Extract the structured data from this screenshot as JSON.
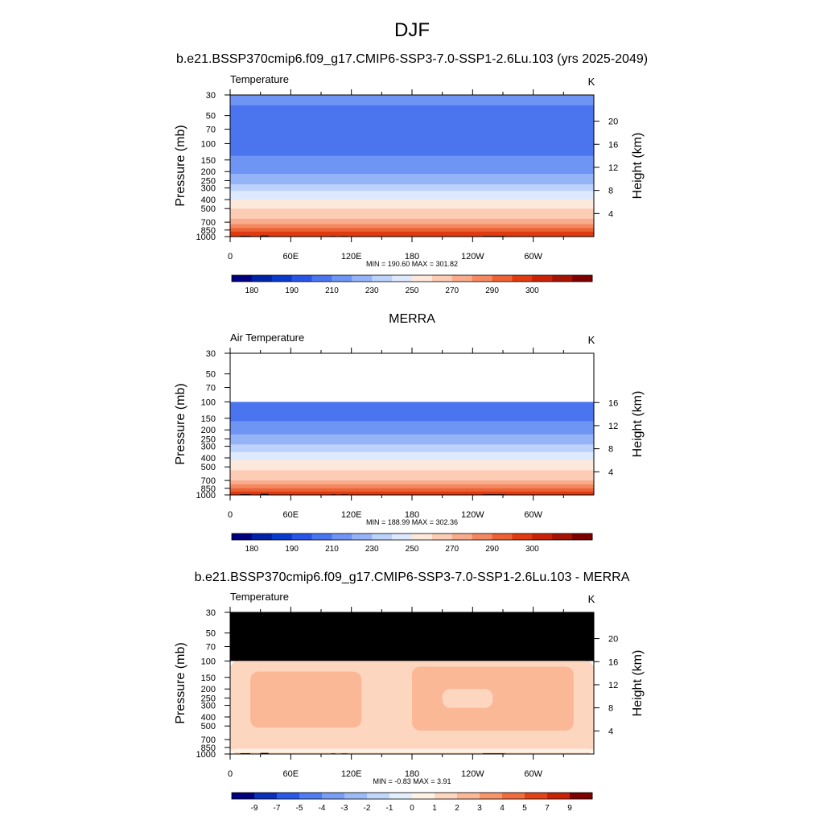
{
  "figure": {
    "title": "DJF",
    "subtitle": "b.e21.BSSP370cmip6.f09_g17.CMIP6-SSP3-7.0-SSP1-2.6Lu.103 (yrs 2025-2049)"
  },
  "colors": {
    "temp_scale": [
      "#00007f",
      "#0022a5",
      "#0a3acb",
      "#2855e5",
      "#4a75ef",
      "#6f95f4",
      "#95b3f7",
      "#bcd1fb",
      "#dde9fd",
      "#fde9dc",
      "#fcccb4",
      "#f9ac8c",
      "#f48860",
      "#ec6234",
      "#df3a10",
      "#c82306",
      "#a51302",
      "#7f0000"
    ],
    "diff_scale": [
      "#00007f",
      "#0a2fb8",
      "#2a59e8",
      "#4f7cf0",
      "#779df4",
      "#9dbaf8",
      "#c1d6fb",
      "#e3eefd",
      "#fef1e6",
      "#fdd6bf",
      "#fbb896",
      "#f7966b",
      "#f06d3f",
      "#e24217",
      "#c82306",
      "#7f0000"
    ]
  },
  "chart_data": [
    {
      "type": "heatmap",
      "panel_title": "",
      "left_label": "Temperature",
      "right_label": "K",
      "ylabel": "Pressure (mb)",
      "ylabel_right": "Height (km)",
      "x_ticks": [
        "0",
        "60E",
        "120E",
        "180",
        "120W",
        "60W"
      ],
      "x_tick_values": [
        0,
        60,
        120,
        180,
        240,
        300
      ],
      "xlim": [
        0,
        360
      ],
      "y_ticks": [
        "30",
        "50",
        "70",
        "100",
        "150",
        "200",
        "250",
        "300",
        "400",
        "500",
        "700",
        "850",
        "1000"
      ],
      "y_tick_values": [
        30,
        50,
        70,
        100,
        150,
        200,
        250,
        300,
        400,
        500,
        700,
        850,
        1000
      ],
      "ylim": [
        1000,
        30
      ],
      "right_ticks": [
        "20",
        "16",
        "12",
        "8",
        "4"
      ],
      "right_tick_values": [
        20,
        16,
        12,
        8,
        4
      ],
      "data_top_pressure": 30,
      "stats": "MIN = 190.60  MAX = 301.82",
      "min": 190.6,
      "max": 301.82,
      "colorbar_labels": [
        "180",
        "190",
        "210",
        "230",
        "250",
        "270",
        "290",
        "300"
      ],
      "colorbar_levels": [
        180,
        185,
        190,
        200,
        210,
        220,
        230,
        240,
        250,
        260,
        270,
        275,
        280,
        285,
        290,
        295,
        300
      ],
      "colorbar_kind": "temp",
      "profile": [
        {
          "p": 30,
          "v": 214
        },
        {
          "p": 50,
          "v": 207
        },
        {
          "p": 70,
          "v": 203
        },
        {
          "p": 100,
          "v": 204
        },
        {
          "p": 150,
          "v": 211
        },
        {
          "p": 200,
          "v": 218
        },
        {
          "p": 250,
          "v": 226
        },
        {
          "p": 300,
          "v": 235
        },
        {
          "p": 400,
          "v": 249
        },
        {
          "p": 500,
          "v": 259
        },
        {
          "p": 700,
          "v": 273
        },
        {
          "p": 850,
          "v": 282
        },
        {
          "p": 1000,
          "v": 291
        }
      ]
    },
    {
      "type": "heatmap",
      "panel_title": "MERRA",
      "left_label": "Air Temperature",
      "right_label": "K",
      "ylabel": "Pressure (mb)",
      "ylabel_right": "Height (km)",
      "x_ticks": [
        "0",
        "60E",
        "120E",
        "180",
        "120W",
        "60W"
      ],
      "x_tick_values": [
        0,
        60,
        120,
        180,
        240,
        300
      ],
      "xlim": [
        0,
        360
      ],
      "y_ticks": [
        "30",
        "50",
        "70",
        "100",
        "150",
        "200",
        "250",
        "300",
        "400",
        "500",
        "700",
        "850",
        "1000"
      ],
      "y_tick_values": [
        30,
        50,
        70,
        100,
        150,
        200,
        250,
        300,
        400,
        500,
        700,
        850,
        1000
      ],
      "ylim": [
        1000,
        30
      ],
      "right_ticks": [
        "16",
        "12",
        "8",
        "4"
      ],
      "right_tick_values": [
        16,
        12,
        8,
        4
      ],
      "data_top_pressure": 100,
      "stats": "MIN = 188.99  MAX = 302.36",
      "min": 188.99,
      "max": 302.36,
      "colorbar_labels": [
        "180",
        "190",
        "210",
        "230",
        "250",
        "270",
        "290",
        "300"
      ],
      "colorbar_levels": [
        180,
        185,
        190,
        200,
        210,
        220,
        230,
        240,
        250,
        260,
        270,
        275,
        280,
        285,
        290,
        295,
        300
      ],
      "colorbar_kind": "temp",
      "profile": [
        {
          "p": 100,
          "v": 201
        },
        {
          "p": 150,
          "v": 209
        },
        {
          "p": 200,
          "v": 216
        },
        {
          "p": 250,
          "v": 224
        },
        {
          "p": 300,
          "v": 233
        },
        {
          "p": 400,
          "v": 247
        },
        {
          "p": 500,
          "v": 257
        },
        {
          "p": 700,
          "v": 271
        },
        {
          "p": 850,
          "v": 280
        },
        {
          "p": 1000,
          "v": 290
        }
      ]
    },
    {
      "type": "heatmap",
      "panel_title": "b.e21.BSSP370cmip6.f09_g17.CMIP6-SSP3-7.0-SSP1-2.6Lu.103 - MERRA",
      "left_label": "Temperature",
      "right_label": "K",
      "ylabel": "Pressure (mb)",
      "ylabel_right": "Height (km)",
      "x_ticks": [
        "0",
        "60E",
        "120E",
        "180",
        "120W",
        "60W"
      ],
      "x_tick_values": [
        0,
        60,
        120,
        180,
        240,
        300
      ],
      "xlim": [
        0,
        360
      ],
      "y_ticks": [
        "30",
        "50",
        "70",
        "100",
        "150",
        "200",
        "250",
        "300",
        "400",
        "500",
        "700",
        "850",
        "1000"
      ],
      "y_tick_values": [
        30,
        50,
        70,
        100,
        150,
        200,
        250,
        300,
        400,
        500,
        700,
        850,
        1000
      ],
      "ylim": [
        1000,
        30
      ],
      "right_ticks": [
        "20",
        "16",
        "12",
        "8",
        "4"
      ],
      "right_tick_values": [
        20,
        16,
        12,
        8,
        4
      ],
      "missing_above_pressure": 100,
      "stats": "MIN =  -0.83  MAX =   3.91",
      "min": -0.83,
      "max": 3.91,
      "colorbar_labels": [
        "-9",
        "-7",
        "-5",
        "-4",
        "-3",
        "-2",
        "-1",
        "0",
        "1",
        "2",
        "3",
        "4",
        "5",
        "7",
        "9"
      ],
      "colorbar_levels": [
        -9,
        -7,
        -5,
        -4,
        -3,
        -2,
        -1,
        0,
        1,
        2,
        3,
        4,
        5,
        7,
        9
      ],
      "colorbar_kind": "diff",
      "diff_regions": [
        {
          "lon": [
            0,
            360
          ],
          "p": [
            100,
            1000
          ],
          "v": 1.5
        },
        {
          "lon": [
            20,
            130
          ],
          "p": [
            130,
            520
          ],
          "v": 2.4
        },
        {
          "lon": [
            180,
            340
          ],
          "p": [
            115,
            560
          ],
          "v": 2.4
        },
        {
          "lon": [
            210,
            260
          ],
          "p": [
            200,
            320
          ],
          "v": 1.5
        },
        {
          "lon": [
            0,
            360
          ],
          "p": [
            880,
            960
          ],
          "v": 0.6
        }
      ]
    }
  ]
}
